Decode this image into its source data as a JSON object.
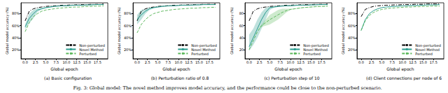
{
  "caption": "Fig. 3: Global model: The novel method improves model accuracy, and the performance could be close to the non-perturbed scenario.",
  "chart_data": [
    {
      "type": "line",
      "title": "(a) Basic configuration",
      "x_label": "Global epoch",
      "y_label": "Global model accuracy (%)",
      "x": [
        0,
        1,
        2,
        3,
        4,
        5,
        6,
        7,
        8,
        9,
        10,
        11,
        12,
        13,
        14,
        15,
        16,
        17,
        18,
        19
      ],
      "xlim": [
        -1,
        20
      ],
      "xticks": [
        {
          "value": 0,
          "label": "0.0"
        },
        {
          "value": 2.5,
          "label": "2.5"
        },
        {
          "value": 5,
          "label": "5.0"
        },
        {
          "value": 7.5,
          "label": "7.5"
        },
        {
          "value": 10,
          "label": "10.0"
        },
        {
          "value": 12.5,
          "label": "12.5"
        },
        {
          "value": 15,
          "label": "15.0"
        },
        {
          "value": 17.5,
          "label": "17.5"
        }
      ],
      "ylim": [
        5,
        98
      ],
      "yticks": [
        {
          "value": 20,
          "label": "20%"
        },
        {
          "value": 40,
          "label": "40%"
        },
        {
          "value": 60,
          "label": "60%"
        },
        {
          "value": 80,
          "label": "80%"
        }
      ],
      "grid": false,
      "legend": "lower right",
      "series": [
        {
          "name": "Non-perturbed",
          "color": "#000000",
          "line_style": "dashdot",
          "values": [
            68,
            84,
            88,
            90,
            91,
            92,
            92.5,
            93,
            93.5,
            94,
            94,
            94.5,
            94.5,
            95,
            95,
            95,
            95.5,
            95.5,
            95.5,
            96
          ]
        },
        {
          "name": "Novel Method",
          "color": "#2a9d8f",
          "line_style": "solid",
          "values": [
            58,
            72,
            80,
            86,
            88,
            90,
            91,
            92,
            92.5,
            93,
            93,
            93.5,
            94,
            94,
            94,
            94.5,
            94.5,
            95,
            95,
            95
          ],
          "band_lower": [
            54,
            64,
            72,
            83,
            87,
            89,
            90,
            91,
            92,
            92.5,
            92.5,
            93,
            93.5,
            93.5,
            93.5,
            94,
            94,
            94.5,
            94.5,
            94.5
          ],
          "band_upper": [
            62,
            80,
            86,
            89,
            89.5,
            91,
            92,
            93,
            93,
            93.5,
            93.5,
            94,
            94.5,
            94.5,
            94.5,
            95,
            95,
            95.5,
            95.5,
            95.5
          ]
        },
        {
          "name": "Perturbed",
          "color": "#5cb85c",
          "line_style": "dashed",
          "values": [
            50,
            65,
            75,
            80,
            84,
            86,
            87,
            88,
            89,
            89.5,
            90,
            90.5,
            91,
            91,
            91.5,
            92,
            92,
            92.5,
            92.5,
            93
          ]
        }
      ]
    },
    {
      "type": "line",
      "title": "(b) Perturbation ratio of 0.8",
      "x_label": "Global epoch",
      "y_label": "Global model accuracy (%)",
      "x": [
        0,
        1,
        2,
        3,
        4,
        5,
        6,
        7,
        8,
        9,
        10,
        11,
        12,
        13,
        14,
        15,
        16,
        17,
        18,
        19
      ],
      "xlim": [
        -1,
        20
      ],
      "xticks": [
        {
          "value": 0,
          "label": "0.0"
        },
        {
          "value": 2.5,
          "label": "2.5"
        },
        {
          "value": 5,
          "label": "5.0"
        },
        {
          "value": 7.5,
          "label": "7.5"
        },
        {
          "value": 10,
          "label": "10.0"
        },
        {
          "value": 12.5,
          "label": "12.5"
        },
        {
          "value": 15,
          "label": "15.0"
        },
        {
          "value": 17.5,
          "label": "17.5"
        }
      ],
      "ylim": [
        5,
        98
      ],
      "yticks": [
        {
          "value": 20,
          "label": "20%"
        },
        {
          "value": 40,
          "label": "40%"
        },
        {
          "value": 60,
          "label": "60%"
        },
        {
          "value": 80,
          "label": "80%"
        }
      ],
      "grid": false,
      "legend": "lower right",
      "series": [
        {
          "name": "Non-perturbed",
          "color": "#000000",
          "line_style": "dashdot",
          "values": [
            68,
            84,
            88,
            90,
            91,
            92,
            92.5,
            93,
            93.5,
            94,
            94,
            94.5,
            94.5,
            95,
            95,
            95,
            95.5,
            95.5,
            95.5,
            96
          ]
        },
        {
          "name": "Novel Method",
          "color": "#2a9d8f",
          "line_style": "solid",
          "values": [
            70,
            78,
            84,
            88,
            90,
            91,
            92,
            92.5,
            93,
            93,
            93.5,
            94,
            94,
            94,
            94.5,
            94.5,
            95,
            95,
            95,
            95
          ],
          "band_lower": [
            62,
            70,
            80,
            86,
            89,
            90,
            91,
            92,
            92.5,
            92.5,
            93,
            93.5,
            93.5,
            93.5,
            94,
            94,
            94.5,
            94.5,
            94.5,
            94.5
          ],
          "band_upper": [
            78,
            86,
            88,
            90,
            91,
            92,
            93,
            93,
            93.5,
            93.5,
            94,
            94.5,
            94.5,
            94.5,
            95,
            95,
            95.5,
            95.5,
            95.5,
            95.5
          ]
        },
        {
          "name": "Perturbed",
          "color": "#5cb85c",
          "line_style": "dashed",
          "values": [
            48,
            62,
            70,
            76,
            80,
            82,
            84,
            85,
            86,
            87,
            87.5,
            88,
            88.5,
            89,
            89,
            89.5,
            90,
            90,
            90.5,
            90.5
          ]
        }
      ]
    },
    {
      "type": "line",
      "title": "(c) Perturbation step of 10",
      "x_label": "Global epoch",
      "y_label": "Global model accuracy (%)",
      "x": [
        0,
        1,
        2,
        3,
        4,
        5,
        6,
        7,
        8,
        9,
        10,
        11,
        12,
        13,
        14,
        15,
        16,
        17,
        18,
        19
      ],
      "xlim": [
        -1,
        20
      ],
      "xticks": [
        {
          "value": 0,
          "label": "0.0"
        },
        {
          "value": 2.5,
          "label": "2.5"
        },
        {
          "value": 5,
          "label": "5.0"
        },
        {
          "value": 7.5,
          "label": "7.5"
        },
        {
          "value": 10,
          "label": "10.0"
        },
        {
          "value": 12.5,
          "label": "12.5"
        },
        {
          "value": 15,
          "label": "15.0"
        },
        {
          "value": 17.5,
          "label": "17.5"
        }
      ],
      "ylim": [
        5,
        98
      ],
      "yticks": [
        20,
        40,
        60,
        80
      ],
      "grid": false,
      "legend": "lower right",
      "series": [
        {
          "name": "Non-perturbed",
          "color": "#000000",
          "line_style": "dashdot",
          "values": [
            68,
            84,
            88,
            90,
            91,
            92,
            92.5,
            93,
            93.5,
            94,
            94,
            94.5,
            94.5,
            95,
            95,
            95,
            95.5,
            95.5,
            95.5,
            96
          ]
        },
        {
          "name": "Novel Method",
          "color": "#2a9d8f",
          "line_style": "solid",
          "values": [
            25,
            40,
            55,
            70,
            82,
            90,
            91,
            92,
            92.5,
            93,
            93,
            93.5,
            94,
            94,
            94,
            94.5,
            94.5,
            95,
            95,
            95
          ],
          "band_lower": [
            18,
            28,
            40,
            55,
            70,
            86,
            90,
            91,
            92,
            92.5,
            92.5,
            93,
            93.5,
            93.5,
            93.5,
            94,
            94,
            94.5,
            94.5,
            94.5
          ],
          "band_upper": [
            45,
            55,
            70,
            82,
            90,
            92,
            92,
            93,
            93,
            93.5,
            93.5,
            94,
            94.5,
            94.5,
            94.5,
            95,
            95,
            95.5,
            95.5,
            95.5
          ]
        },
        {
          "name": "Perturbed",
          "color": "#5cb85c",
          "line_style": "dashed",
          "values": [
            20,
            35,
            50,
            60,
            65,
            70,
            74,
            78,
            82,
            85,
            87,
            88,
            89,
            90,
            90.5,
            91,
            91.5,
            92,
            92,
            92.5
          ],
          "band_lower": [
            20,
            35,
            50,
            58,
            60,
            62,
            66,
            70,
            76,
            82,
            86,
            87.5,
            88.5,
            89.5,
            90,
            90.5,
            91,
            91.5,
            91.5,
            92
          ],
          "band_upper": [
            20,
            35,
            50,
            62,
            70,
            78,
            82,
            86,
            88,
            88,
            88,
            88.5,
            89.5,
            90.5,
            91,
            91.5,
            92,
            92.5,
            92.5,
            93
          ]
        }
      ]
    },
    {
      "type": "line",
      "title": "(d) Client connections per node of 6",
      "x_label": "Global epoch",
      "y_label": "Global model accuracy (%)",
      "x": [
        0,
        1,
        2,
        3,
        4,
        5,
        6,
        7,
        8,
        9,
        10,
        11,
        12,
        13,
        14,
        15,
        16,
        17,
        18,
        19
      ],
      "xlim": [
        -1,
        20
      ],
      "xticks": [
        {
          "value": 0,
          "label": "0.0"
        },
        {
          "value": 2.5,
          "label": "2.5"
        },
        {
          "value": 5,
          "label": "5.0"
        },
        {
          "value": 7.5,
          "label": "7.5"
        },
        {
          "value": 10,
          "label": "10.0"
        },
        {
          "value": 12.5,
          "label": "12.5"
        },
        {
          "value": 15,
          "label": "15.0"
        },
        {
          "value": 17.5,
          "label": "17.5"
        }
      ],
      "ylim": [
        5,
        98
      ],
      "yticks": [
        {
          "value": 20,
          "label": "20%"
        },
        {
          "value": 40,
          "label": "40%"
        },
        {
          "value": 60,
          "label": "60%"
        },
        {
          "value": 80,
          "label": "80%"
        }
      ],
      "grid": false,
      "legend": "lower right",
      "series": [
        {
          "name": "Non-perturbed",
          "color": "#000000",
          "line_style": "dashdot",
          "values": [
            75,
            87,
            90,
            92,
            93,
            93.5,
            94,
            94,
            94.5,
            94.5,
            95,
            95,
            95,
            95.5,
            95.5,
            95.5,
            96,
            96,
            96,
            96
          ]
        },
        {
          "name": "Novel Method",
          "color": "#2a9d8f",
          "line_style": "solid",
          "values": [
            52,
            70,
            80,
            85,
            88,
            90,
            91,
            91.5,
            92,
            92.5,
            93,
            93,
            93.5,
            93.5,
            94,
            94,
            94.5,
            94.5,
            94.5,
            95
          ]
        },
        {
          "name": "Perturbed",
          "color": "#5cb85c",
          "line_style": "dashed",
          "values": [
            52,
            68,
            77,
            82,
            85,
            87,
            88,
            89,
            89.5,
            90,
            90.5,
            91,
            91,
            91.5,
            91.5,
            92,
            92,
            92.5,
            92.5,
            92.5
          ]
        }
      ]
    }
  ]
}
